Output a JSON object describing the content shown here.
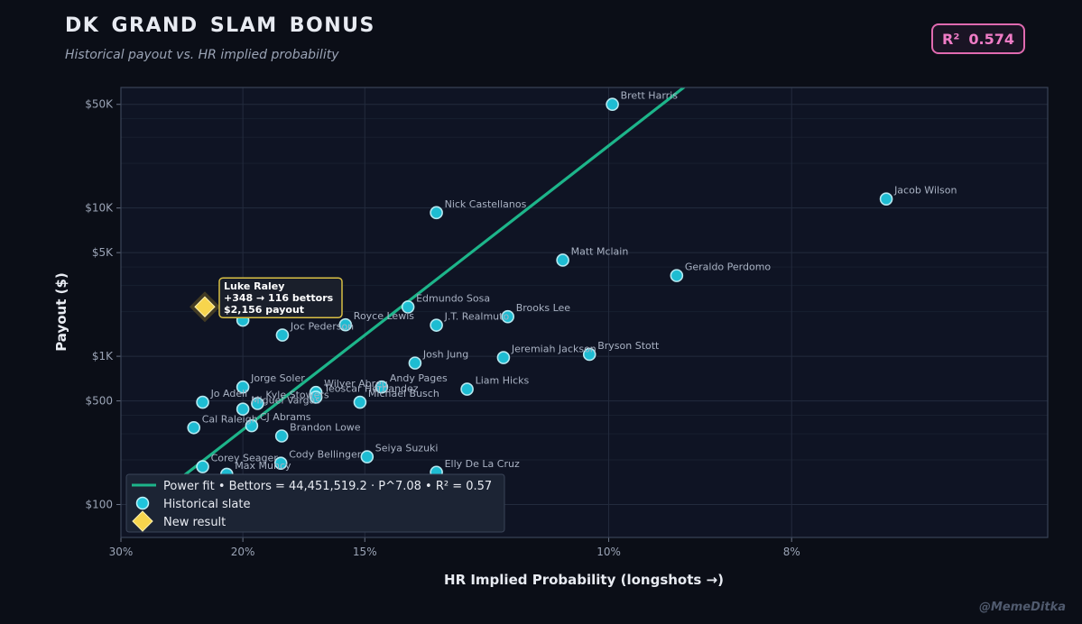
{
  "header": {
    "title": "DK GRAND SLAM BONUS",
    "subtitle": "Historical payout vs. HR implied probability",
    "r2_label": "R²",
    "r2_value": "0.574"
  },
  "credit": "@MemeDitka",
  "colors": {
    "background": "#0b0e17",
    "plot_bg": "#0f1424",
    "fit_line": "#1db58a",
    "point_fill": "#1fc5dc",
    "point_stroke": "#bff4fb",
    "new_point": "#f7d54d",
    "badge": "#e06ab0"
  },
  "chart_data": {
    "type": "scatter",
    "xlabel": "HR Implied Probability  (longshots →)",
    "ylabel": "Payout ($)",
    "x_scale": "reciprocal",
    "y_scale": "log",
    "xlim": [
      0.3,
      0.0625
    ],
    "ylim": [
      60,
      65000
    ],
    "x_ticks": [
      {
        "value": 0.3,
        "label": "30%"
      },
      {
        "value": 0.2,
        "label": "20%"
      },
      {
        "value": 0.15,
        "label": "15%"
      },
      {
        "value": 0.1,
        "label": "10%"
      },
      {
        "value": 0.08,
        "label": "8%"
      }
    ],
    "y_ticks": [
      {
        "value": 100,
        "label": "$100"
      },
      {
        "value": 500,
        "label": "$500"
      },
      {
        "value": 1000,
        "label": "$1K"
      },
      {
        "value": 5000,
        "label": "$5K"
      },
      {
        "value": 10000,
        "label": "$10K"
      },
      {
        "value": 50000,
        "label": "$50K"
      }
    ],
    "grid": true,
    "legend_position": "bottom-left",
    "legend": {
      "fit": "Power fit  •  Bettors = 44,451,519.2 · P^7.08  •  R² = 0.57",
      "historical": "Historical slate",
      "new": "New result"
    },
    "fit_line": {
      "x": [
        0.2857,
        0.0907
      ],
      "y": [
        85,
        65000
      ]
    },
    "series": [
      {
        "name": "Historical slate",
        "points": [
          {
            "label": "Brett Harris",
            "x": 0.0995,
            "y": 50000
          },
          {
            "label": "Jacob Wilson",
            "x": 0.0725,
            "y": 11500
          },
          {
            "label": "Nick Castellanos",
            "x": 0.1308,
            "y": 9300
          },
          {
            "label": "Matt Mclain",
            "x": 0.1067,
            "y": 4450
          },
          {
            "label": "Geraldo Perdomo",
            "x": 0.0915,
            "y": 3500
          },
          {
            "label": "Edmundo Sosa",
            "x": 0.1378,
            "y": 2150
          },
          {
            "label": "Brooks Lee",
            "x": 0.116,
            "y": 1850
          },
          {
            "label": "J.T. Realmuto",
            "x": 0.1308,
            "y": 1620
          },
          {
            "label": "Royce Lewis",
            "x": 0.1562,
            "y": 1630
          },
          {
            "label": "Joc Pederson",
            "x": 0.1805,
            "y": 1390
          },
          {
            "label": "",
            "x": 0.2,
            "y": 1750
          },
          {
            "label": "Josh Jung",
            "x": 0.136,
            "y": 900
          },
          {
            "label": "Jeremiah Jackson",
            "x": 0.1168,
            "y": 980
          },
          {
            "label": "Bryson Stott",
            "x": 0.1027,
            "y": 1030
          },
          {
            "label": "Andy Pages",
            "x": 0.145,
            "y": 620
          },
          {
            "label": "Liam Hicks",
            "x": 0.124,
            "y": 600
          },
          {
            "label": "Wilyer Abreu",
            "x": 0.1667,
            "y": 570
          },
          {
            "label": "Teoscar Hernandez",
            "x": 0.1667,
            "y": 530
          },
          {
            "label": "Michael Busch",
            "x": 0.1515,
            "y": 490
          },
          {
            "label": "Jorge Soler",
            "x": 0.2,
            "y": 620
          },
          {
            "label": "Kyle Stowers",
            "x": 0.1923,
            "y": 480
          },
          {
            "label": "Miguel Vargas",
            "x": 0.2,
            "y": 440
          },
          {
            "label": "Jo Adell",
            "x": 0.2247,
            "y": 490
          },
          {
            "label": "CJ Abrams",
            "x": 0.1953,
            "y": 340
          },
          {
            "label": "Cal Raleigh",
            "x": 0.231,
            "y": 330
          },
          {
            "label": "Brandon Lowe",
            "x": 0.1808,
            "y": 290
          },
          {
            "label": "Seiya Suzuki",
            "x": 0.1493,
            "y": 210
          },
          {
            "label": "Cody Bellinger",
            "x": 0.1812,
            "y": 190
          },
          {
            "label": "Elly De La Cruz",
            "x": 0.1308,
            "y": 165
          },
          {
            "label": "Max Muncy",
            "x": 0.2092,
            "y": 160
          },
          {
            "label": "Corey Seager",
            "x": 0.2247,
            "y": 180
          }
        ]
      },
      {
        "name": "New result",
        "points": [
          {
            "label": "Luke Raley",
            "x": 0.2232,
            "y": 2156,
            "annotation": [
              "Luke Raley",
              "+348  →  116 bettors",
              "$2,156 payout"
            ]
          }
        ]
      }
    ]
  }
}
